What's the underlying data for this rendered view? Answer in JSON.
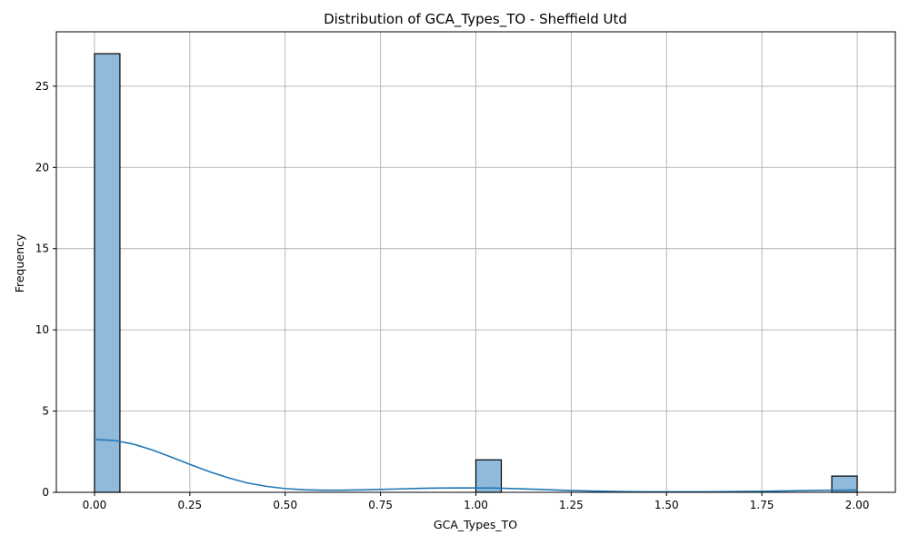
{
  "chart_data": {
    "type": "histogram",
    "title": "Distribution of GCA_Types_TO - Sheffield Utd",
    "xlabel": "GCA_Types_TO",
    "ylabel": "Frequency",
    "xlim": [
      -0.1,
      2.1
    ],
    "ylim": [
      0,
      28.35
    ],
    "xticks": [
      0.0,
      0.25,
      0.5,
      0.75,
      1.0,
      1.25,
      1.5,
      1.75,
      2.0
    ],
    "xtick_labels": [
      "0.00",
      "0.25",
      "0.50",
      "0.75",
      "1.00",
      "1.25",
      "1.50",
      "1.75",
      "2.00"
    ],
    "yticks": [
      0,
      5,
      10,
      15,
      20,
      25
    ],
    "ytick_labels": [
      "0",
      "5",
      "10",
      "15",
      "20",
      "25"
    ],
    "grid": true,
    "bins": [
      {
        "x0": 0.0,
        "x1": 0.0667,
        "count": 27
      },
      {
        "x0": 1.0,
        "x1": 1.0667,
        "count": 2
      },
      {
        "x0": 1.9333,
        "x1": 2.0,
        "count": 1
      }
    ],
    "kde": {
      "x": [
        0.0,
        0.05,
        0.1,
        0.15,
        0.2,
        0.25,
        0.3,
        0.35,
        0.4,
        0.45,
        0.5,
        0.55,
        0.6,
        0.65,
        0.7,
        0.75,
        0.8,
        0.85,
        0.9,
        0.95,
        1.0,
        1.05,
        1.1,
        1.15,
        1.2,
        1.25,
        1.3,
        1.35,
        1.4,
        1.45,
        1.5,
        1.55,
        1.6,
        1.65,
        1.7,
        1.75,
        1.8,
        1.85,
        1.9,
        1.95,
        2.0
      ],
      "y": [
        3.25,
        3.2,
        2.98,
        2.62,
        2.18,
        1.72,
        1.28,
        0.9,
        0.58,
        0.37,
        0.23,
        0.16,
        0.13,
        0.13,
        0.15,
        0.18,
        0.21,
        0.24,
        0.26,
        0.27,
        0.27,
        0.26,
        0.23,
        0.19,
        0.15,
        0.11,
        0.08,
        0.06,
        0.04,
        0.03,
        0.03,
        0.03,
        0.03,
        0.04,
        0.05,
        0.06,
        0.08,
        0.1,
        0.12,
        0.13,
        0.14
      ]
    },
    "colors": {
      "bar_fill": "#8fbadb",
      "bar_edge": "#000000",
      "kde_line": "#1f77b4",
      "grid": "#b0b0b0"
    }
  }
}
